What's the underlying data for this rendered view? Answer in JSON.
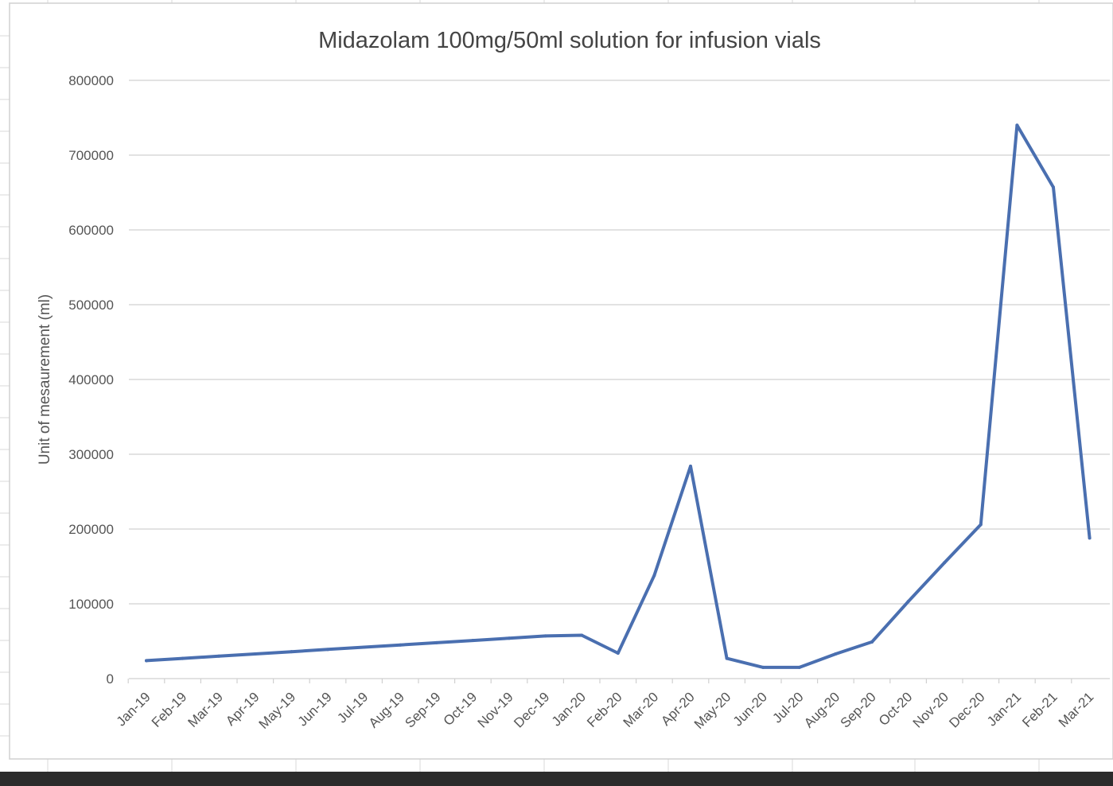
{
  "chart_data": {
    "type": "line",
    "title": "Midazolam 100mg/50ml solution for infusion vials",
    "xlabel": "",
    "ylabel": "Unit of mesaurement (ml)",
    "ylim": [
      0,
      800000
    ],
    "yticks": [
      "0",
      "100000",
      "200000",
      "300000",
      "400000",
      "500000",
      "600000",
      "700000",
      "800000"
    ],
    "categories": [
      "Jan-19",
      "Feb-19",
      "Mar-19",
      "Apr-19",
      "May-19",
      "Jun-19",
      "Jul-19",
      "Aug-19",
      "Sep-19",
      "Oct-19",
      "Nov-19",
      "Dec-19",
      "Jan-20",
      "Feb-20",
      "Mar-20",
      "Apr-20",
      "May-20",
      "Jun-20",
      "Jul-20",
      "Aug-20",
      "Sep-20",
      "Oct-20",
      "Nov-20",
      "Dec-20",
      "Jan-21",
      "Feb-21",
      "Mar-21"
    ],
    "series": [
      {
        "values": [
          24000,
          27000,
          30000,
          33000,
          36000,
          39000,
          42000,
          45000,
          48000,
          51000,
          54000,
          57000,
          58000,
          34000,
          138000,
          284000,
          27000,
          15000,
          15000,
          33000,
          49000,
          103000,
          155000,
          206000,
          740000,
          657000,
          188000
        ],
        "color": "#4a6fb0"
      }
    ],
    "grid": true,
    "legend": "none"
  }
}
